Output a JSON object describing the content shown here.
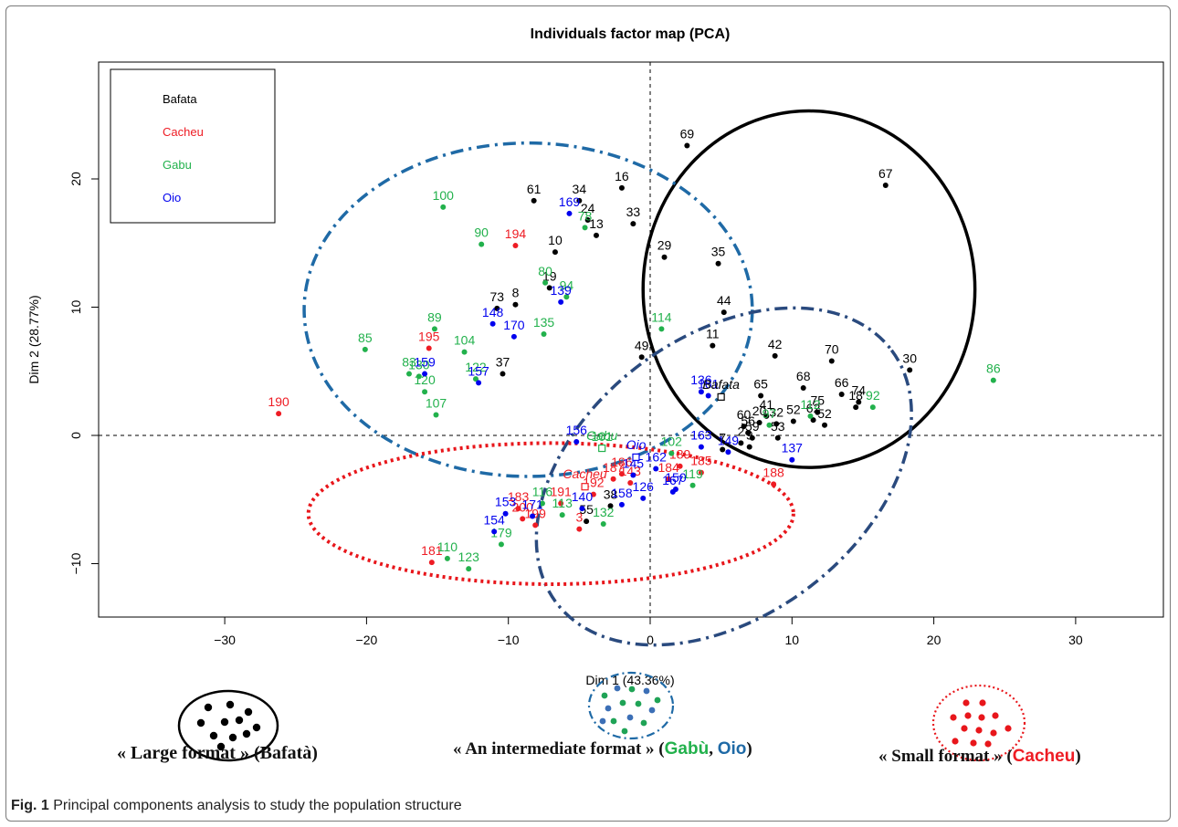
{
  "chart_data": {
    "type": "scatter",
    "title": "Individuals factor map (PCA)",
    "xlabel": "Dim 1 (43.36%)",
    "ylabel": "Dim 2 (28.77%)",
    "xlim": [
      -38,
      36
    ],
    "ylim": [
      -14,
      28
    ],
    "xticks": [
      -30,
      -20,
      -10,
      0,
      10,
      20,
      30
    ],
    "yticks": [
      -10,
      0,
      10,
      20
    ],
    "grid": false,
    "legend_position": "top-left",
    "series": [
      {
        "name": "Bafata",
        "color": "#000000",
        "points": [
          {
            "x": 2.6,
            "y": 22.6,
            "label": "69"
          },
          {
            "x": 16.6,
            "y": 19.5,
            "label": "67"
          },
          {
            "x": -8.2,
            "y": 18.3,
            "label": "61"
          },
          {
            "x": -5.0,
            "y": 18.3,
            "label": "34"
          },
          {
            "x": -2.0,
            "y": 19.3,
            "label": "16"
          },
          {
            "x": -4.4,
            "y": 16.8,
            "label": "24"
          },
          {
            "x": -3.8,
            "y": 15.6,
            "label": "13"
          },
          {
            "x": -1.2,
            "y": 16.5,
            "label": "33"
          },
          {
            "x": -6.7,
            "y": 14.3,
            "label": "10"
          },
          {
            "x": 1.0,
            "y": 13.9,
            "label": "29"
          },
          {
            "x": 4.8,
            "y": 13.4,
            "label": "35"
          },
          {
            "x": -7.1,
            "y": 11.5,
            "label": "19"
          },
          {
            "x": -9.5,
            "y": 10.2,
            "label": "8"
          },
          {
            "x": -10.8,
            "y": 9.9,
            "label": "73"
          },
          {
            "x": 5.2,
            "y": 9.6,
            "label": "44"
          },
          {
            "x": 4.4,
            "y": 7.0,
            "label": "11"
          },
          {
            "x": 8.8,
            "y": 6.2,
            "label": "42"
          },
          {
            "x": 12.8,
            "y": 5.8,
            "label": "70"
          },
          {
            "x": 18.3,
            "y": 5.1,
            "label": "30"
          },
          {
            "x": -0.6,
            "y": 6.1,
            "label": "49"
          },
          {
            "x": -10.4,
            "y": 4.8,
            "label": "37"
          },
          {
            "x": 7.8,
            "y": 3.1,
            "label": "65"
          },
          {
            "x": 10.8,
            "y": 3.7,
            "label": "68"
          },
          {
            "x": 13.5,
            "y": 3.2,
            "label": "66"
          },
          {
            "x": 14.5,
            "y": 2.2,
            "label": "18"
          },
          {
            "x": 14.7,
            "y": 2.6,
            "label": "74"
          },
          {
            "x": 11.8,
            "y": 1.8,
            "label": "75"
          },
          {
            "x": 8.2,
            "y": 1.5,
            "label": "41"
          },
          {
            "x": 11.5,
            "y": 1.2,
            "label": "62"
          },
          {
            "x": 12.3,
            "y": 0.8,
            "label": "52"
          },
          {
            "x": 6.6,
            "y": 0.7,
            "label": "60"
          },
          {
            "x": 7.7,
            "y": 1.0,
            "label": "20"
          },
          {
            "x": 8.9,
            "y": 0.9,
            "label": "32"
          },
          {
            "x": 10.1,
            "y": 1.1,
            "label": "52"
          },
          {
            "x": 6.9,
            "y": 0.2,
            "label": "56"
          },
          {
            "x": 7.2,
            "y": -0.2,
            "label": "59"
          },
          {
            "x": 9.0,
            "y": -0.2,
            "label": "53"
          },
          {
            "x": 6.4,
            "y": -0.6,
            "label": "2"
          },
          {
            "x": 7.0,
            "y": -0.9,
            "label": "9"
          },
          {
            "x": 5.1,
            "y": -1.1,
            "label": "7"
          },
          {
            "x": -2.8,
            "y": -5.5,
            "label": "38"
          },
          {
            "x": -4.5,
            "y": -6.7,
            "label": "55"
          }
        ]
      },
      {
        "name": "Cacheu",
        "color": "#ee1c24",
        "points": [
          {
            "x": -9.5,
            "y": 14.8,
            "label": "194"
          },
          {
            "x": -15.6,
            "y": 6.8,
            "label": "195"
          },
          {
            "x": -26.2,
            "y": 1.7,
            "label": "190"
          },
          {
            "x": 8.7,
            "y": -3.8,
            "label": "188"
          },
          {
            "x": -15.4,
            "y": -9.9,
            "label": "181"
          },
          {
            "x": -9.3,
            "y": -5.7,
            "label": "183"
          },
          {
            "x": -5.0,
            "y": -7.3,
            "label": "3"
          },
          {
            "x": -2.6,
            "y": -3.4,
            "label": "187"
          },
          {
            "x": -2.0,
            "y": -3.0,
            "label": "186"
          },
          {
            "x": -1.4,
            "y": -3.7,
            "label": "143"
          },
          {
            "x": 2.1,
            "y": -2.4,
            "label": "189"
          },
          {
            "x": -6.3,
            "y": -5.3,
            "label": "191"
          },
          {
            "x": -4.0,
            "y": -4.6,
            "label": "192"
          },
          {
            "x": -8.1,
            "y": -7.0,
            "label": "199"
          },
          {
            "x": -9.0,
            "y": -6.5,
            "label": "200"
          },
          {
            "x": 3.6,
            "y": -2.9,
            "label": "185"
          },
          {
            "x": 1.3,
            "y": -3.4,
            "label": "184"
          }
        ]
      },
      {
        "name": "Gabu",
        "color": "#22b14c",
        "points": [
          {
            "x": -14.6,
            "y": 17.8,
            "label": "100"
          },
          {
            "x": -11.9,
            "y": 14.9,
            "label": "90"
          },
          {
            "x": -4.6,
            "y": 16.2,
            "label": "78"
          },
          {
            "x": -7.4,
            "y": 11.9,
            "label": "80"
          },
          {
            "x": -5.9,
            "y": 10.8,
            "label": "94"
          },
          {
            "x": -15.2,
            "y": 8.3,
            "label": "89"
          },
          {
            "x": -20.1,
            "y": 6.7,
            "label": "85"
          },
          {
            "x": -13.1,
            "y": 6.5,
            "label": "104"
          },
          {
            "x": -7.5,
            "y": 7.9,
            "label": "135"
          },
          {
            "x": 0.8,
            "y": 8.3,
            "label": "114"
          },
          {
            "x": 24.2,
            "y": 4.3,
            "label": "86"
          },
          {
            "x": -17.0,
            "y": 4.8,
            "label": "83"
          },
          {
            "x": -16.3,
            "y": 4.6,
            "label": "130"
          },
          {
            "x": -12.3,
            "y": 4.4,
            "label": "122"
          },
          {
            "x": -15.9,
            "y": 3.4,
            "label": "120"
          },
          {
            "x": -15.1,
            "y": 1.6,
            "label": "107"
          },
          {
            "x": 15.7,
            "y": 2.2,
            "label": "92"
          },
          {
            "x": 11.3,
            "y": 1.5,
            "label": "112"
          },
          {
            "x": 8.4,
            "y": 0.8,
            "label": "97"
          },
          {
            "x": -3.4,
            "y": -1.0,
            "label": "101"
          },
          {
            "x": 1.5,
            "y": -1.4,
            "label": "102"
          },
          {
            "x": -12.8,
            "y": -10.4,
            "label": "123"
          },
          {
            "x": -14.3,
            "y": -9.6,
            "label": "110"
          },
          {
            "x": -7.6,
            "y": -5.3,
            "label": "116"
          },
          {
            "x": -3.3,
            "y": -6.9,
            "label": "132"
          },
          {
            "x": -10.5,
            "y": -8.5,
            "label": "179"
          },
          {
            "x": -6.2,
            "y": -6.2,
            "label": "113"
          },
          {
            "x": 3.0,
            "y": -3.9,
            "label": "119"
          }
        ]
      },
      {
        "name": "Oio",
        "color": "#0000ee",
        "points": [
          {
            "x": -5.7,
            "y": 17.3,
            "label": "169"
          },
          {
            "x": -6.3,
            "y": 10.4,
            "label": "139"
          },
          {
            "x": -11.1,
            "y": 8.7,
            "label": "148"
          },
          {
            "x": -9.6,
            "y": 7.7,
            "label": "170"
          },
          {
            "x": -15.9,
            "y": 4.8,
            "label": "159"
          },
          {
            "x": -12.1,
            "y": 4.1,
            "label": "157"
          },
          {
            "x": 3.6,
            "y": 3.4,
            "label": "136"
          },
          {
            "x": 4.1,
            "y": 3.1,
            "label": "161"
          },
          {
            "x": -5.2,
            "y": -0.5,
            "label": "156"
          },
          {
            "x": 3.6,
            "y": -0.9,
            "label": "163"
          },
          {
            "x": 10.0,
            "y": -1.9,
            "label": "137"
          },
          {
            "x": 5.5,
            "y": -1.3,
            "label": "149"
          },
          {
            "x": -11.0,
            "y": -7.5,
            "label": "154"
          },
          {
            "x": -10.2,
            "y": -6.1,
            "label": "153"
          },
          {
            "x": -4.8,
            "y": -5.7,
            "label": "140"
          },
          {
            "x": -2.0,
            "y": -5.4,
            "label": "158"
          },
          {
            "x": 1.8,
            "y": -4.2,
            "label": "150"
          },
          {
            "x": -1.2,
            "y": -3.1,
            "label": "145"
          },
          {
            "x": -0.5,
            "y": -4.9,
            "label": "126"
          },
          {
            "x": 0.4,
            "y": -2.6,
            "label": "162"
          },
          {
            "x": -8.3,
            "y": -6.3,
            "label": "171"
          },
          {
            "x": 1.6,
            "y": -4.4,
            "label": "167"
          }
        ]
      }
    ],
    "group_centers": [
      {
        "label": "Bafata",
        "x": 5.0,
        "y": 3.0
      },
      {
        "label": "Gabu",
        "x": -3.4,
        "y": -1.0
      },
      {
        "label": "Oio",
        "x": -1.0,
        "y": -1.7
      },
      {
        "label": "Cacheu",
        "x": -4.6,
        "y": -4.0
      }
    ]
  },
  "format_labels": {
    "large": "« Large format » (Bafatà)",
    "intermediate_prefix": "« An intermediate format » (",
    "intermediate_gabu": "Gabù",
    "intermediate_sep": ", ",
    "intermediate_oio": "Oio",
    "intermediate_suffix": ")",
    "small_prefix": "« Small format » (",
    "small_cacheu": "Cacheu",
    "small_suffix": ")"
  },
  "caption": {
    "prefix": "Fig. 1",
    "text": " Principal components analysis to study the population structure"
  },
  "colors": {
    "bafata": "#000000",
    "cacheu": "#ee1c24",
    "gabu": "#22b14c",
    "oio": "#0000ee",
    "ellipse_blue": "#1f6aa6",
    "ellipse_navy": "#2a4a7e",
    "ellipse_red": "#e8161b"
  }
}
